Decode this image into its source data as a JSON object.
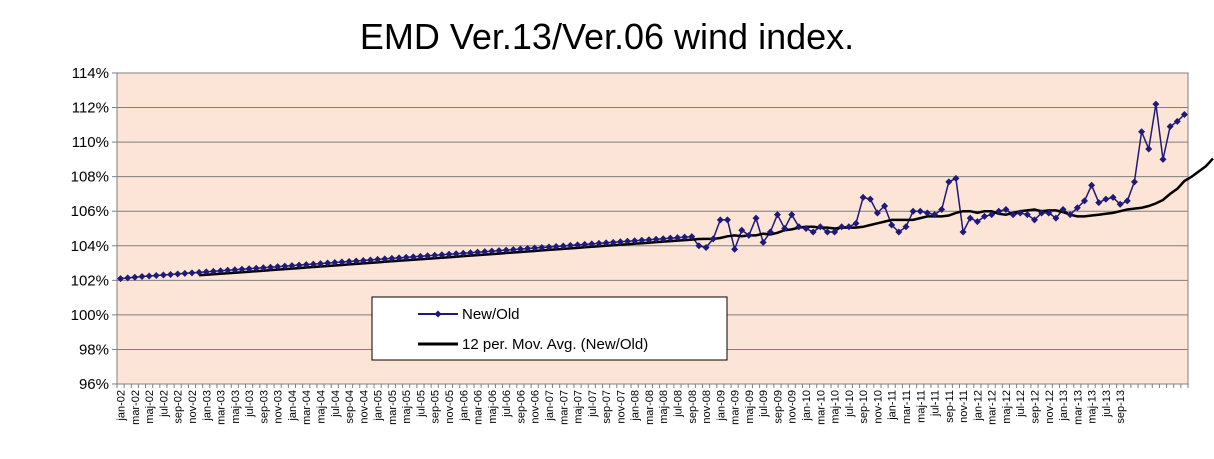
{
  "chart_data": {
    "type": "line",
    "title": "EMD Ver.13/Ver.06 wind index.",
    "xlabel": "",
    "ylabel": "",
    "ylim": [
      96,
      114
    ],
    "yticks": [
      "96%",
      "98%",
      "100%",
      "102%",
      "104%",
      "106%",
      "108%",
      "110%",
      "112%",
      "114%"
    ],
    "grid": "horizontal",
    "plot_background": "#FCE4D6",
    "legend_placement": "center-left",
    "x_tick_labels": [
      "jan-02",
      "mar-02",
      "maj-02",
      "jul-02",
      "sep-02",
      "nov-02",
      "jan-03",
      "mar-03",
      "maj-03",
      "jul-03",
      "sep-03",
      "nov-03",
      "jan-04",
      "mar-04",
      "maj-04",
      "jul-04",
      "sep-04",
      "nov-04",
      "jan-05",
      "mar-05",
      "maj-05",
      "jul-05",
      "sep-05",
      "nov-05",
      "jan-06",
      "mar-06",
      "maj-06",
      "jul-06",
      "sep-06",
      "nov-06",
      "jan-07",
      "mar-07",
      "maj-07",
      "jul-07",
      "sep-07",
      "nov-07",
      "jan-08",
      "mar-08",
      "maj-08",
      "jul-08",
      "sep-08",
      "nov-08",
      "jan-09",
      "mar-09",
      "maj-09",
      "jul-09",
      "sep-09",
      "nov-09",
      "jan-10",
      "mar-10",
      "maj-10",
      "jul-10",
      "sep-10",
      "nov-10",
      "jan-11",
      "mar-11",
      "maj-11",
      "jul-11",
      "sep-11",
      "nov-11",
      "jan-12",
      "mar-12",
      "maj-12",
      "jul-12",
      "sep-12",
      "nov-12",
      "jan-13",
      "mar-13",
      "maj-13",
      "jul-13",
      "sep-13"
    ],
    "series": [
      {
        "name": "New/Old",
        "color": "#1F1A7A",
        "marker": "diamond",
        "values": [
          102.1,
          102.14,
          102.18,
          102.22,
          102.25,
          102.28,
          102.31,
          102.34,
          102.37,
          102.4,
          102.43,
          102.46,
          102.49,
          102.52,
          102.55,
          102.58,
          102.61,
          102.64,
          102.67,
          102.7,
          102.73,
          102.76,
          102.79,
          102.82,
          102.85,
          102.88,
          102.91,
          102.94,
          102.97,
          103.0,
          103.03,
          103.06,
          103.09,
          103.12,
          103.15,
          103.18,
          103.21,
          103.24,
          103.27,
          103.3,
          103.33,
          103.36,
          103.39,
          103.42,
          103.45,
          103.48,
          103.51,
          103.54,
          103.57,
          103.6,
          103.63,
          103.66,
          103.69,
          103.72,
          103.75,
          103.78,
          103.81,
          103.84,
          103.87,
          103.9,
          103.93,
          103.96,
          103.99,
          104.02,
          104.05,
          104.08,
          104.11,
          104.14,
          104.17,
          104.2,
          104.23,
          104.26,
          104.29,
          104.32,
          104.35,
          104.38,
          104.41,
          104.44,
          104.47,
          104.5,
          104.53,
          104.0,
          103.9,
          104.4,
          105.5,
          105.5,
          103.8,
          104.9,
          104.6,
          105.6,
          104.2,
          104.8,
          105.8,
          105.0,
          105.8,
          105.1,
          105.0,
          104.8,
          105.1,
          104.8,
          104.8,
          105.1,
          105.1,
          105.3,
          106.8,
          106.7,
          105.9,
          106.3,
          105.2,
          104.8,
          105.1,
          106.0,
          106.0,
          105.9,
          105.8,
          106.1,
          107.7,
          107.9,
          104.8,
          105.6,
          105.4,
          105.7,
          105.8,
          106.0,
          106.1,
          105.8,
          105.9,
          105.8,
          105.5,
          105.9,
          105.9,
          105.6,
          106.1,
          105.8,
          106.2,
          106.6,
          107.5,
          106.5,
          106.7,
          106.8,
          106.4,
          106.6,
          107.7,
          110.6,
          109.6,
          112.2,
          109.0,
          110.9,
          111.2,
          111.6
        ]
      },
      {
        "name": "12 per. Mov. Avg. (New/Old)",
        "color": "#000000",
        "start_index": 11,
        "values": [
          102.29,
          102.32,
          102.35,
          102.38,
          102.41,
          102.44,
          102.47,
          102.5,
          102.53,
          102.56,
          102.59,
          102.62,
          102.65,
          102.68,
          102.71,
          102.74,
          102.77,
          102.8,
          102.83,
          102.86,
          102.89,
          102.92,
          102.95,
          102.98,
          103.01,
          103.04,
          103.07,
          103.1,
          103.13,
          103.16,
          103.19,
          103.22,
          103.25,
          103.28,
          103.31,
          103.34,
          103.37,
          103.4,
          103.43,
          103.46,
          103.49,
          103.52,
          103.55,
          103.58,
          103.61,
          103.64,
          103.67,
          103.7,
          103.73,
          103.76,
          103.79,
          103.82,
          103.85,
          103.88,
          103.91,
          103.94,
          103.97,
          104.0,
          104.03,
          104.06,
          104.09,
          104.12,
          104.15,
          104.18,
          104.21,
          104.24,
          104.27,
          104.3,
          104.33,
          104.36,
          104.39,
          104.4,
          104.4,
          104.45,
          104.55,
          104.6,
          104.55,
          104.6,
          104.6,
          104.7,
          104.65,
          104.75,
          104.9,
          104.95,
          105.05,
          105.1,
          105.1,
          105.05,
          105.05,
          105.0,
          105.05,
          105.05,
          105.05,
          105.1,
          105.2,
          105.3,
          105.4,
          105.5,
          105.5,
          105.5,
          105.5,
          105.6,
          105.7,
          105.7,
          105.7,
          105.75,
          105.9,
          106.0,
          106.0,
          105.9,
          106.0,
          106.0,
          105.85,
          105.8,
          105.9,
          106.0,
          106.05,
          106.1,
          106.0,
          106.05,
          106.05,
          105.95,
          105.8,
          105.7,
          105.7,
          105.75,
          105.8,
          105.85,
          105.9,
          106.0,
          106.1,
          106.15,
          106.2,
          106.3,
          106.45,
          106.65,
          107.0,
          107.3,
          107.75,
          108.0,
          108.3,
          108.6,
          109.05
        ]
      }
    ]
  }
}
